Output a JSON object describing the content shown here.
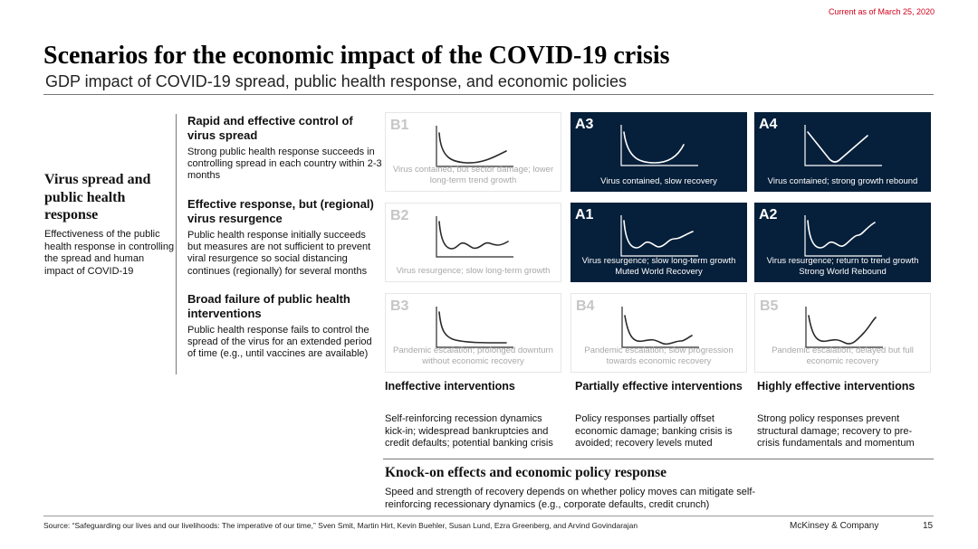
{
  "header": {
    "date_note": "Current as of March 25, 2020",
    "title": "Scenarios for the economic impact of the COVID-19 crisis",
    "subtitle": "GDP impact of COVID-19 spread, public health response, and economic policies"
  },
  "left_axis": {
    "title": "Virus spread and public health response",
    "description": "Effectiveness of the public health response in controlling the spread and human impact of COVID-19"
  },
  "rows": [
    {
      "heading": "Rapid and effective control of virus spread",
      "description": "Strong public health response succeeds in controlling spread in each country within 2-3 months"
    },
    {
      "heading": "Effective response, but (regional) virus resurgence",
      "description": "Public health response initially succeeds but measures are not sufficient to prevent viral resurgence so social distancing continues (regionally) for several months"
    },
    {
      "heading": "Broad failure of public health interventions",
      "description": "Public health response fails to control the spread of the virus for an extended period of time (e.g., until vaccines are available)"
    }
  ],
  "scenarios": [
    {
      "code": "B1",
      "label": "Virus contained, but sector damage; lower long-term trend growth",
      "theme": "light",
      "curve": "shallow-u"
    },
    {
      "code": "A3",
      "label": "Virus contained, slow recovery",
      "theme": "dark",
      "curve": "u-recovery"
    },
    {
      "code": "A4",
      "label": "Virus contained; strong growth rebound",
      "theme": "dark",
      "curve": "v-rebound"
    },
    {
      "code": "B2",
      "label": "Virus resurgence; slow long-term growth",
      "theme": "light",
      "curve": "wavy-flat"
    },
    {
      "code": "A1",
      "label": "Virus resurgence; slow long-term growth Muted World Recovery",
      "theme": "dark",
      "curve": "wavy-slow"
    },
    {
      "code": "A2",
      "label": "Virus resurgence; return to trend growth Strong World Rebound",
      "theme": "dark",
      "curve": "wavy-rebound"
    },
    {
      "code": "B3",
      "label": "Pandemic escalation; prolonged downturn without economic recovery",
      "theme": "light",
      "curve": "decline-flat"
    },
    {
      "code": "B4",
      "label": "Pandemic escalation; slow progression towards economic recovery",
      "theme": "light",
      "curve": "bumpy-slow"
    },
    {
      "code": "B5",
      "label": "Pandemic escalation; delayed but full economic recovery",
      "theme": "light",
      "curve": "bumpy-full"
    }
  ],
  "columns": [
    {
      "heading": "Ineffective interventions",
      "description": "Self-reinforcing recession dynamics kick-in; widespread bankruptcies and credit defaults; potential banking crisis"
    },
    {
      "heading": "Partially effective interventions",
      "description": "Policy responses partially offset economic damage; banking crisis is avoided; recovery levels muted"
    },
    {
      "heading": "Highly effective interventions",
      "description": "Strong policy responses prevent structural damage; recovery to pre-crisis fundamentals and momentum"
    }
  ],
  "bottom_axis": {
    "title": "Knock-on effects and economic policy response",
    "description": "Speed and strength of recovery depends on whether policy moves can mitigate self-reinforcing recessionary dynamics (e.g., corporate defaults, credit crunch)"
  },
  "footer": {
    "source": "Source: “Safeguarding our lives and our livelihoods: The imperative of our time,” Sven Smit, Martin Hirt, Kevin Buehler, Susan Lund, Ezra Greenberg, and Arvind Govindarajan",
    "company": "McKinsey & Company",
    "page_number": "15"
  },
  "colors": {
    "dark_cell": "#061f3a",
    "accent_red": "#d0021b"
  }
}
